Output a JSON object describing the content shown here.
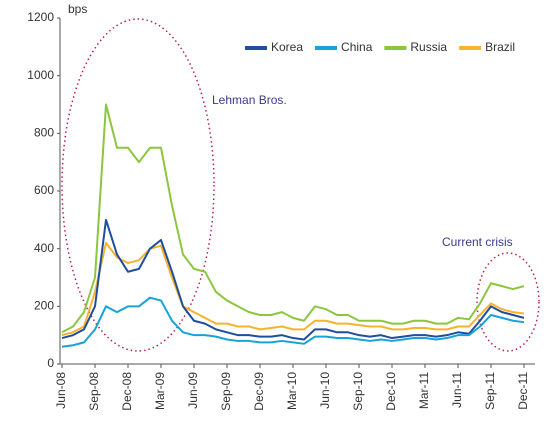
{
  "chart_data": {
    "type": "line",
    "y_label": "bps",
    "categories": [
      "Jun-08",
      null,
      null,
      "Sep-08",
      null,
      null,
      "Dec-08",
      null,
      null,
      "Mar-09",
      null,
      null,
      "Jun-09",
      null,
      null,
      "Sep-09",
      null,
      null,
      "Dec-09",
      null,
      null,
      "Mar-10",
      null,
      null,
      "Jun-10",
      null,
      null,
      "Sep-10",
      null,
      null,
      "Dec-10",
      null,
      null,
      "Mar-11",
      null,
      null,
      "Jun-11",
      null,
      null,
      "Sep-11",
      null,
      null,
      "Dec-11"
    ],
    "series": [
      {
        "name": "Korea",
        "color": "#1f4e9c",
        "values": [
          90,
          100,
          120,
          200,
          500,
          380,
          320,
          330,
          400,
          430,
          320,
          200,
          150,
          140,
          120,
          110,
          100,
          100,
          95,
          95,
          100,
          90,
          85,
          120,
          120,
          110,
          110,
          100,
          95,
          100,
          90,
          95,
          100,
          100,
          95,
          100,
          110,
          105,
          150,
          200,
          180,
          170,
          160
        ]
      },
      {
        "name": "China",
        "color": "#17a3d9",
        "values": [
          60,
          65,
          75,
          120,
          200,
          180,
          200,
          200,
          230,
          220,
          150,
          110,
          100,
          100,
          95,
          85,
          80,
          80,
          75,
          75,
          80,
          75,
          70,
          95,
          95,
          90,
          90,
          85,
          80,
          85,
          80,
          85,
          90,
          90,
          85,
          90,
          100,
          100,
          130,
          170,
          160,
          150,
          145
        ]
      },
      {
        "name": "Russia",
        "color": "#8cc63f",
        "values": [
          110,
          130,
          180,
          300,
          900,
          750,
          750,
          700,
          750,
          750,
          550,
          380,
          330,
          320,
          250,
          220,
          200,
          180,
          170,
          170,
          180,
          160,
          150,
          200,
          190,
          170,
          170,
          150,
          150,
          150,
          140,
          140,
          150,
          150,
          140,
          140,
          160,
          155,
          210,
          280,
          270,
          260,
          270
        ]
      },
      {
        "name": "Brazil",
        "color": "#f7b32b",
        "values": [
          100,
          110,
          130,
          250,
          420,
          370,
          350,
          360,
          400,
          410,
          300,
          200,
          180,
          160,
          140,
          140,
          130,
          130,
          120,
          125,
          130,
          120,
          120,
          150,
          150,
          140,
          140,
          135,
          130,
          130,
          120,
          120,
          125,
          125,
          120,
          120,
          130,
          130,
          170,
          210,
          190,
          180,
          175
        ]
      }
    ],
    "ylim": [
      0,
      1200
    ],
    "yticks": [
      0,
      200,
      400,
      600,
      800,
      1000,
      1200
    ],
    "grid": false,
    "legend": "top-right",
    "annotations": [
      "Lehman Bros.",
      "Current crisis"
    ]
  }
}
